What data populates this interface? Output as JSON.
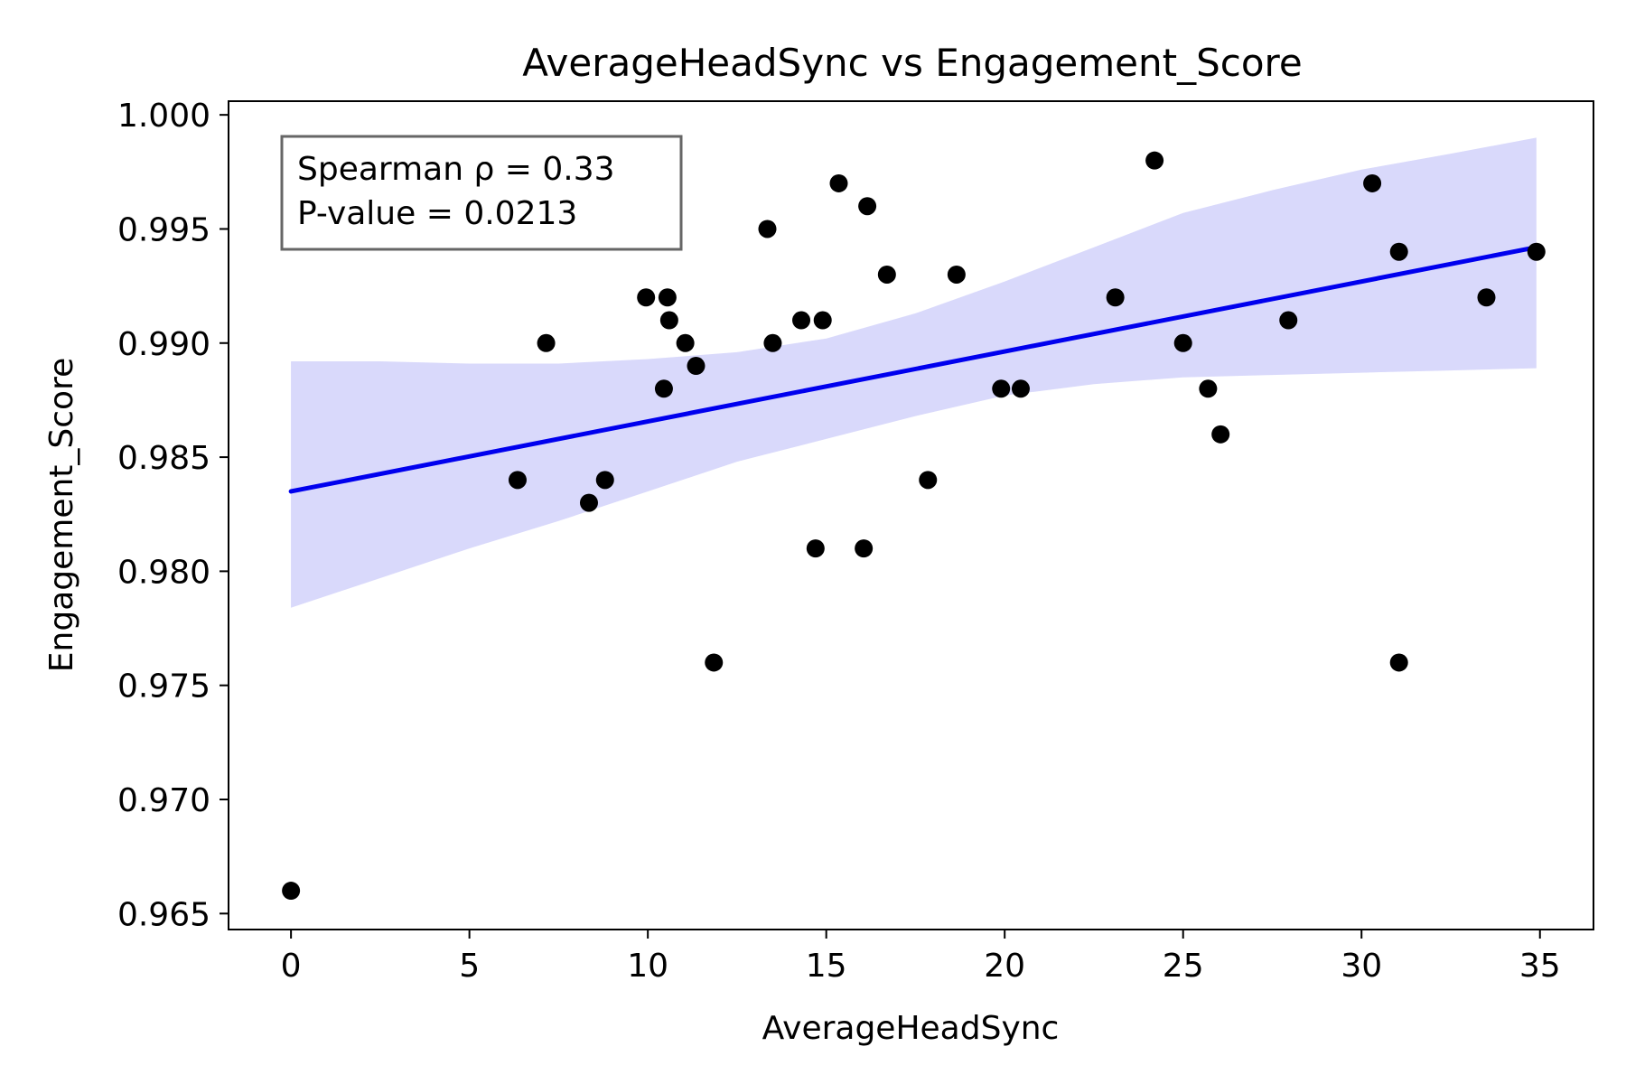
{
  "chart_data": {
    "type": "scatter",
    "title": "AverageHeadSync vs Engagement_Score",
    "xlabel": "AverageHeadSync",
    "ylabel": "Engagement_Score",
    "xlim": [
      -1.75,
      36.5
    ],
    "ylim": [
      0.9643,
      1.0006
    ],
    "xticks": [
      0,
      5,
      10,
      15,
      20,
      25,
      30,
      35
    ],
    "xtick_labels": [
      "0",
      "5",
      "10",
      "15",
      "20",
      "25",
      "30",
      "35"
    ],
    "yticks": [
      0.965,
      0.97,
      0.975,
      0.98,
      0.985,
      0.99,
      0.995,
      1.0
    ],
    "ytick_labels": [
      "0.965",
      "0.970",
      "0.975",
      "0.980",
      "0.985",
      "0.990",
      "0.995",
      "1.000"
    ],
    "grid": false,
    "annotation": {
      "line1": "Spearman ρ = 0.33",
      "line2": "P-value = 0.0213",
      "placement": "top-left"
    },
    "colors": {
      "points": "#000000",
      "fit_line": "#0000ee",
      "confidence_band": "#d9d9fb"
    },
    "points": [
      {
        "x": 0.0,
        "y": 0.966
      },
      {
        "x": 6.35,
        "y": 0.984
      },
      {
        "x": 7.15,
        "y": 0.99
      },
      {
        "x": 8.35,
        "y": 0.983
      },
      {
        "x": 8.8,
        "y": 0.984
      },
      {
        "x": 9.95,
        "y": 0.992
      },
      {
        "x": 10.45,
        "y": 0.988
      },
      {
        "x": 10.55,
        "y": 0.992
      },
      {
        "x": 10.6,
        "y": 0.991
      },
      {
        "x": 11.05,
        "y": 0.99
      },
      {
        "x": 11.35,
        "y": 0.989
      },
      {
        "x": 11.85,
        "y": 0.976
      },
      {
        "x": 13.35,
        "y": 0.995
      },
      {
        "x": 13.5,
        "y": 0.99
      },
      {
        "x": 14.3,
        "y": 0.991
      },
      {
        "x": 14.7,
        "y": 0.981
      },
      {
        "x": 14.9,
        "y": 0.991
      },
      {
        "x": 15.35,
        "y": 0.997
      },
      {
        "x": 16.05,
        "y": 0.981
      },
      {
        "x": 16.15,
        "y": 0.996
      },
      {
        "x": 16.7,
        "y": 0.993
      },
      {
        "x": 17.85,
        "y": 0.984
      },
      {
        "x": 18.65,
        "y": 0.993
      },
      {
        "x": 19.9,
        "y": 0.988
      },
      {
        "x": 20.45,
        "y": 0.988
      },
      {
        "x": 23.1,
        "y": 0.992
      },
      {
        "x": 24.2,
        "y": 0.998
      },
      {
        "x": 25.0,
        "y": 0.99
      },
      {
        "x": 25.7,
        "y": 0.988
      },
      {
        "x": 26.05,
        "y": 0.986
      },
      {
        "x": 27.95,
        "y": 0.991
      },
      {
        "x": 30.3,
        "y": 0.997
      },
      {
        "x": 31.05,
        "y": 0.994
      },
      {
        "x": 31.05,
        "y": 0.976
      },
      {
        "x": 33.5,
        "y": 0.992
      },
      {
        "x": 34.9,
        "y": 0.994
      }
    ],
    "fit_line": {
      "x": [
        0.0,
        34.9
      ],
      "y": [
        0.9835,
        0.9942
      ]
    },
    "confidence_band": {
      "x": [
        0,
        2.5,
        5,
        7.5,
        10,
        12.5,
        15,
        17.5,
        20,
        22.5,
        25,
        27.5,
        30,
        32.5,
        34.9
      ],
      "upper": [
        0.9892,
        0.9892,
        0.9891,
        0.9891,
        0.9893,
        0.9896,
        0.9902,
        0.9913,
        0.9927,
        0.9942,
        0.9957,
        0.9967,
        0.9976,
        0.9983,
        0.999
      ],
      "lower": [
        0.9784,
        0.9797,
        0.981,
        0.9822,
        0.9835,
        0.9848,
        0.9858,
        0.9868,
        0.9877,
        0.9882,
        0.9885,
        0.9886,
        0.9887,
        0.9888,
        0.9889
      ]
    }
  }
}
